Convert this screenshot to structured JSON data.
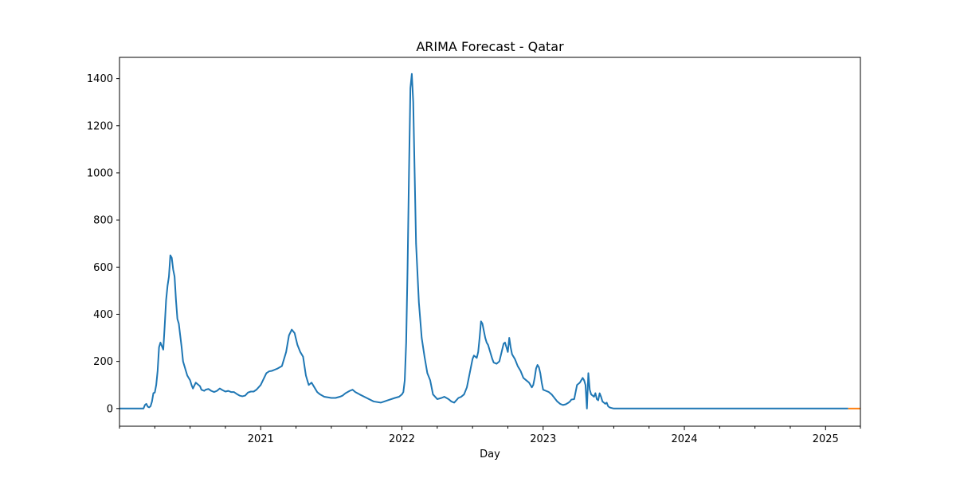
{
  "chart_data": {
    "type": "line",
    "title": "ARIMA Forecast - Qatar",
    "xlabel": "Day",
    "ylabel": "",
    "xlim": [
      2020.0,
      2025.2466
    ],
    "ylim": [
      -75,
      1490
    ],
    "grid": false,
    "legend": "none",
    "y_ticks": [
      0,
      200,
      400,
      600,
      800,
      1000,
      1200,
      1400
    ],
    "x_major_ticks": [
      {
        "value": 2021,
        "label": "2021"
      },
      {
        "value": 2022,
        "label": "2022"
      },
      {
        "value": 2023,
        "label": "2023"
      },
      {
        "value": 2024,
        "label": "2024"
      },
      {
        "value": 2025,
        "label": "2025"
      }
    ],
    "x_minor_ticks": [
      2020.0,
      2020.25,
      2020.5,
      2020.75,
      2021.25,
      2021.5,
      2021.75,
      2022.25,
      2022.5,
      2022.75,
      2023.25,
      2023.5,
      2023.75,
      2024.25,
      2024.5,
      2024.75,
      2025.2466
    ],
    "series": [
      {
        "color": "#1f77b4",
        "x": [
          2020.0,
          2020.17,
          2020.18,
          2020.19,
          2020.2,
          2020.21,
          2020.22,
          2020.23,
          2020.24,
          2020.25,
          2020.26,
          2020.27,
          2020.28,
          2020.29,
          2020.31,
          2020.32,
          2020.33,
          2020.34,
          2020.35,
          2020.36,
          2020.37,
          2020.38,
          2020.39,
          2020.4,
          2020.41,
          2020.42,
          2020.43,
          2020.44,
          2020.45,
          2020.46,
          2020.47,
          2020.48,
          2020.49,
          2020.5,
          2020.51,
          2020.52,
          2020.54,
          2020.56,
          2020.57,
          2020.58,
          2020.6,
          2020.61,
          2020.63,
          2020.65,
          2020.67,
          2020.69,
          2020.71,
          2020.73,
          2020.75,
          2020.77,
          2020.79,
          2020.81,
          2020.83,
          2020.85,
          2020.87,
          2020.89,
          2020.91,
          2020.93,
          2020.95,
          2020.97,
          2021.0,
          2021.04,
          2021.06,
          2021.08,
          2021.1,
          2021.12,
          2021.15,
          2021.18,
          2021.2,
          2021.22,
          2021.24,
          2021.26,
          2021.28,
          2021.3,
          2021.32,
          2021.34,
          2021.36,
          2021.38,
          2021.4,
          2021.42,
          2021.45,
          2021.5,
          2021.53,
          2021.56,
          2021.58,
          2021.6,
          2021.63,
          2021.65,
          2021.67,
          2021.7,
          2021.75,
          2021.8,
          2021.85,
          2021.9,
          2021.95,
          2021.98,
          2021.99,
          2022.0,
          2022.01,
          2022.02,
          2022.03,
          2022.04,
          2022.05,
          2022.06,
          2022.07,
          2022.08,
          2022.09,
          2022.1,
          2022.12,
          2022.14,
          2022.16,
          2022.18,
          2022.2,
          2022.22,
          2022.25,
          2022.28,
          2022.3,
          2022.33,
          2022.35,
          2022.37,
          2022.4,
          2022.42,
          2022.44,
          2022.46,
          2022.48,
          2022.5,
          2022.51,
          2022.52,
          2022.53,
          2022.54,
          2022.55,
          2022.56,
          2022.57,
          2022.58,
          2022.59,
          2022.6,
          2022.61,
          2022.62,
          2022.63,
          2022.64,
          2022.65,
          2022.67,
          2022.69,
          2022.7,
          2022.71,
          2022.72,
          2022.73,
          2022.74,
          2022.75,
          2022.76,
          2022.77,
          2022.78,
          2022.8,
          2022.82,
          2022.84,
          2022.86,
          2022.88,
          2022.9,
          2022.92,
          2022.93,
          2022.94,
          2022.95,
          2022.96,
          2022.97,
          2022.98,
          2022.99,
          2023.0,
          2023.02,
          2023.04,
          2023.06,
          2023.08,
          2023.1,
          2023.12,
          2023.14,
          2023.16,
          2023.18,
          2023.19,
          2023.2,
          2023.22,
          2023.24,
          2023.26,
          2023.27,
          2023.28,
          2023.29,
          2023.3,
          2023.31,
          2023.32,
          2023.33,
          2023.34,
          2023.35,
          2023.36,
          2023.37,
          2023.38,
          2023.39,
          2023.4,
          2023.41,
          2023.42,
          2023.43,
          2023.44,
          2023.45,
          2023.46,
          2023.47,
          2023.48,
          2023.5,
          2023.6,
          2024.0,
          2024.5,
          2025.0,
          2025.16
        ],
        "y": [
          0,
          0,
          15,
          20,
          8,
          5,
          10,
          30,
          65,
          68,
          100,
          160,
          260,
          280,
          250,
          350,
          460,
          520,
          560,
          650,
          640,
          590,
          560,
          460,
          380,
          360,
          310,
          260,
          200,
          180,
          160,
          140,
          130,
          120,
          100,
          85,
          110,
          100,
          95,
          80,
          75,
          80,
          83,
          75,
          70,
          75,
          85,
          78,
          72,
          75,
          70,
          70,
          62,
          55,
          52,
          55,
          68,
          72,
          72,
          80,
          100,
          150,
          158,
          160,
          165,
          170,
          180,
          240,
          310,
          335,
          320,
          270,
          240,
          220,
          140,
          100,
          110,
          90,
          70,
          60,
          50,
          45,
          45,
          50,
          55,
          65,
          75,
          80,
          70,
          60,
          45,
          30,
          25,
          35,
          45,
          50,
          55,
          60,
          70,
          120,
          280,
          600,
          1000,
          1360,
          1420,
          1300,
          1000,
          700,
          450,
          300,
          220,
          150,
          120,
          60,
          40,
          45,
          50,
          40,
          30,
          25,
          45,
          50,
          60,
          90,
          150,
          210,
          225,
          220,
          215,
          240,
          300,
          370,
          360,
          330,
          300,
          280,
          270,
          250,
          230,
          210,
          195,
          190,
          200,
          225,
          250,
          275,
          280,
          260,
          240,
          300,
          260,
          230,
          210,
          180,
          160,
          130,
          120,
          110,
          90,
          100,
          130,
          170,
          185,
          175,
          150,
          110,
          80,
          75,
          70,
          60,
          45,
          30,
          20,
          15,
          18,
          25,
          30,
          38,
          40,
          100,
          110,
          120,
          130,
          120,
          100,
          0,
          150,
          80,
          60,
          55,
          50,
          65,
          40,
          35,
          65,
          50,
          30,
          25,
          20,
          25,
          10,
          5,
          3,
          0,
          0,
          0,
          0,
          0,
          0
        ]
      },
      {
        "color": "#ff7f0e",
        "x": [
          2025.16,
          2025.2466
        ],
        "y": [
          0,
          0
        ]
      }
    ]
  }
}
